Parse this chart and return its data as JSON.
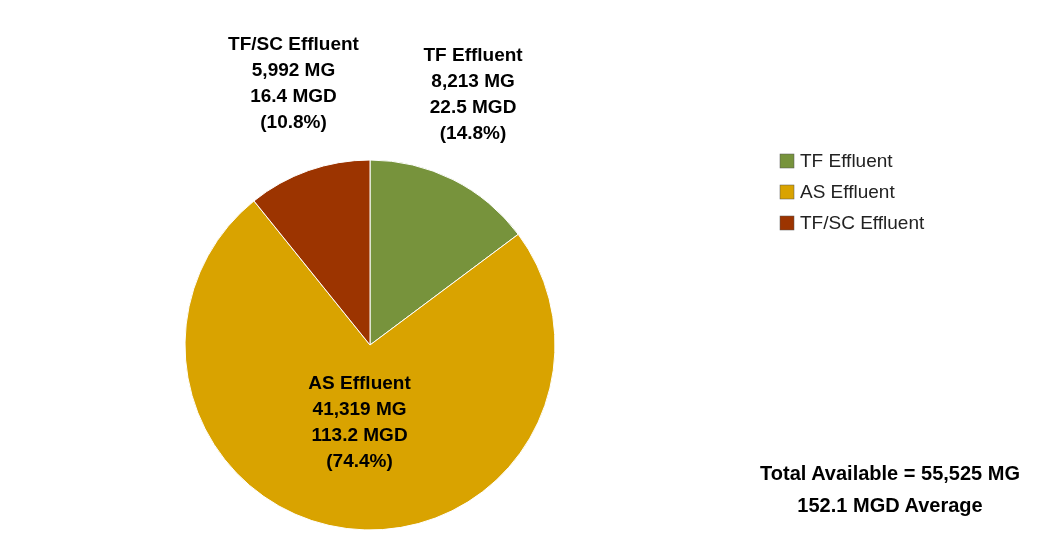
{
  "chart_data": {
    "type": "pie",
    "categories": [
      "TF Effluent",
      "AS Effluent",
      "TF/SC Effluent"
    ],
    "values": [
      8213,
      41319,
      5992
    ],
    "colors": [
      "#77933c",
      "#d9a300",
      "#9c3400"
    ],
    "value_labels": [
      "8,213 MG\n22.5 MGD\n(14.8%)",
      "41,319 MG\n113.2 MGD\n(74.4%)",
      "5,992 MG\n16.4 MGD\n(10.8%)"
    ],
    "legend": "right",
    "annotations": [
      "Total Available = 55,525 MG",
      "152.1 MGD Average"
    ]
  }
}
